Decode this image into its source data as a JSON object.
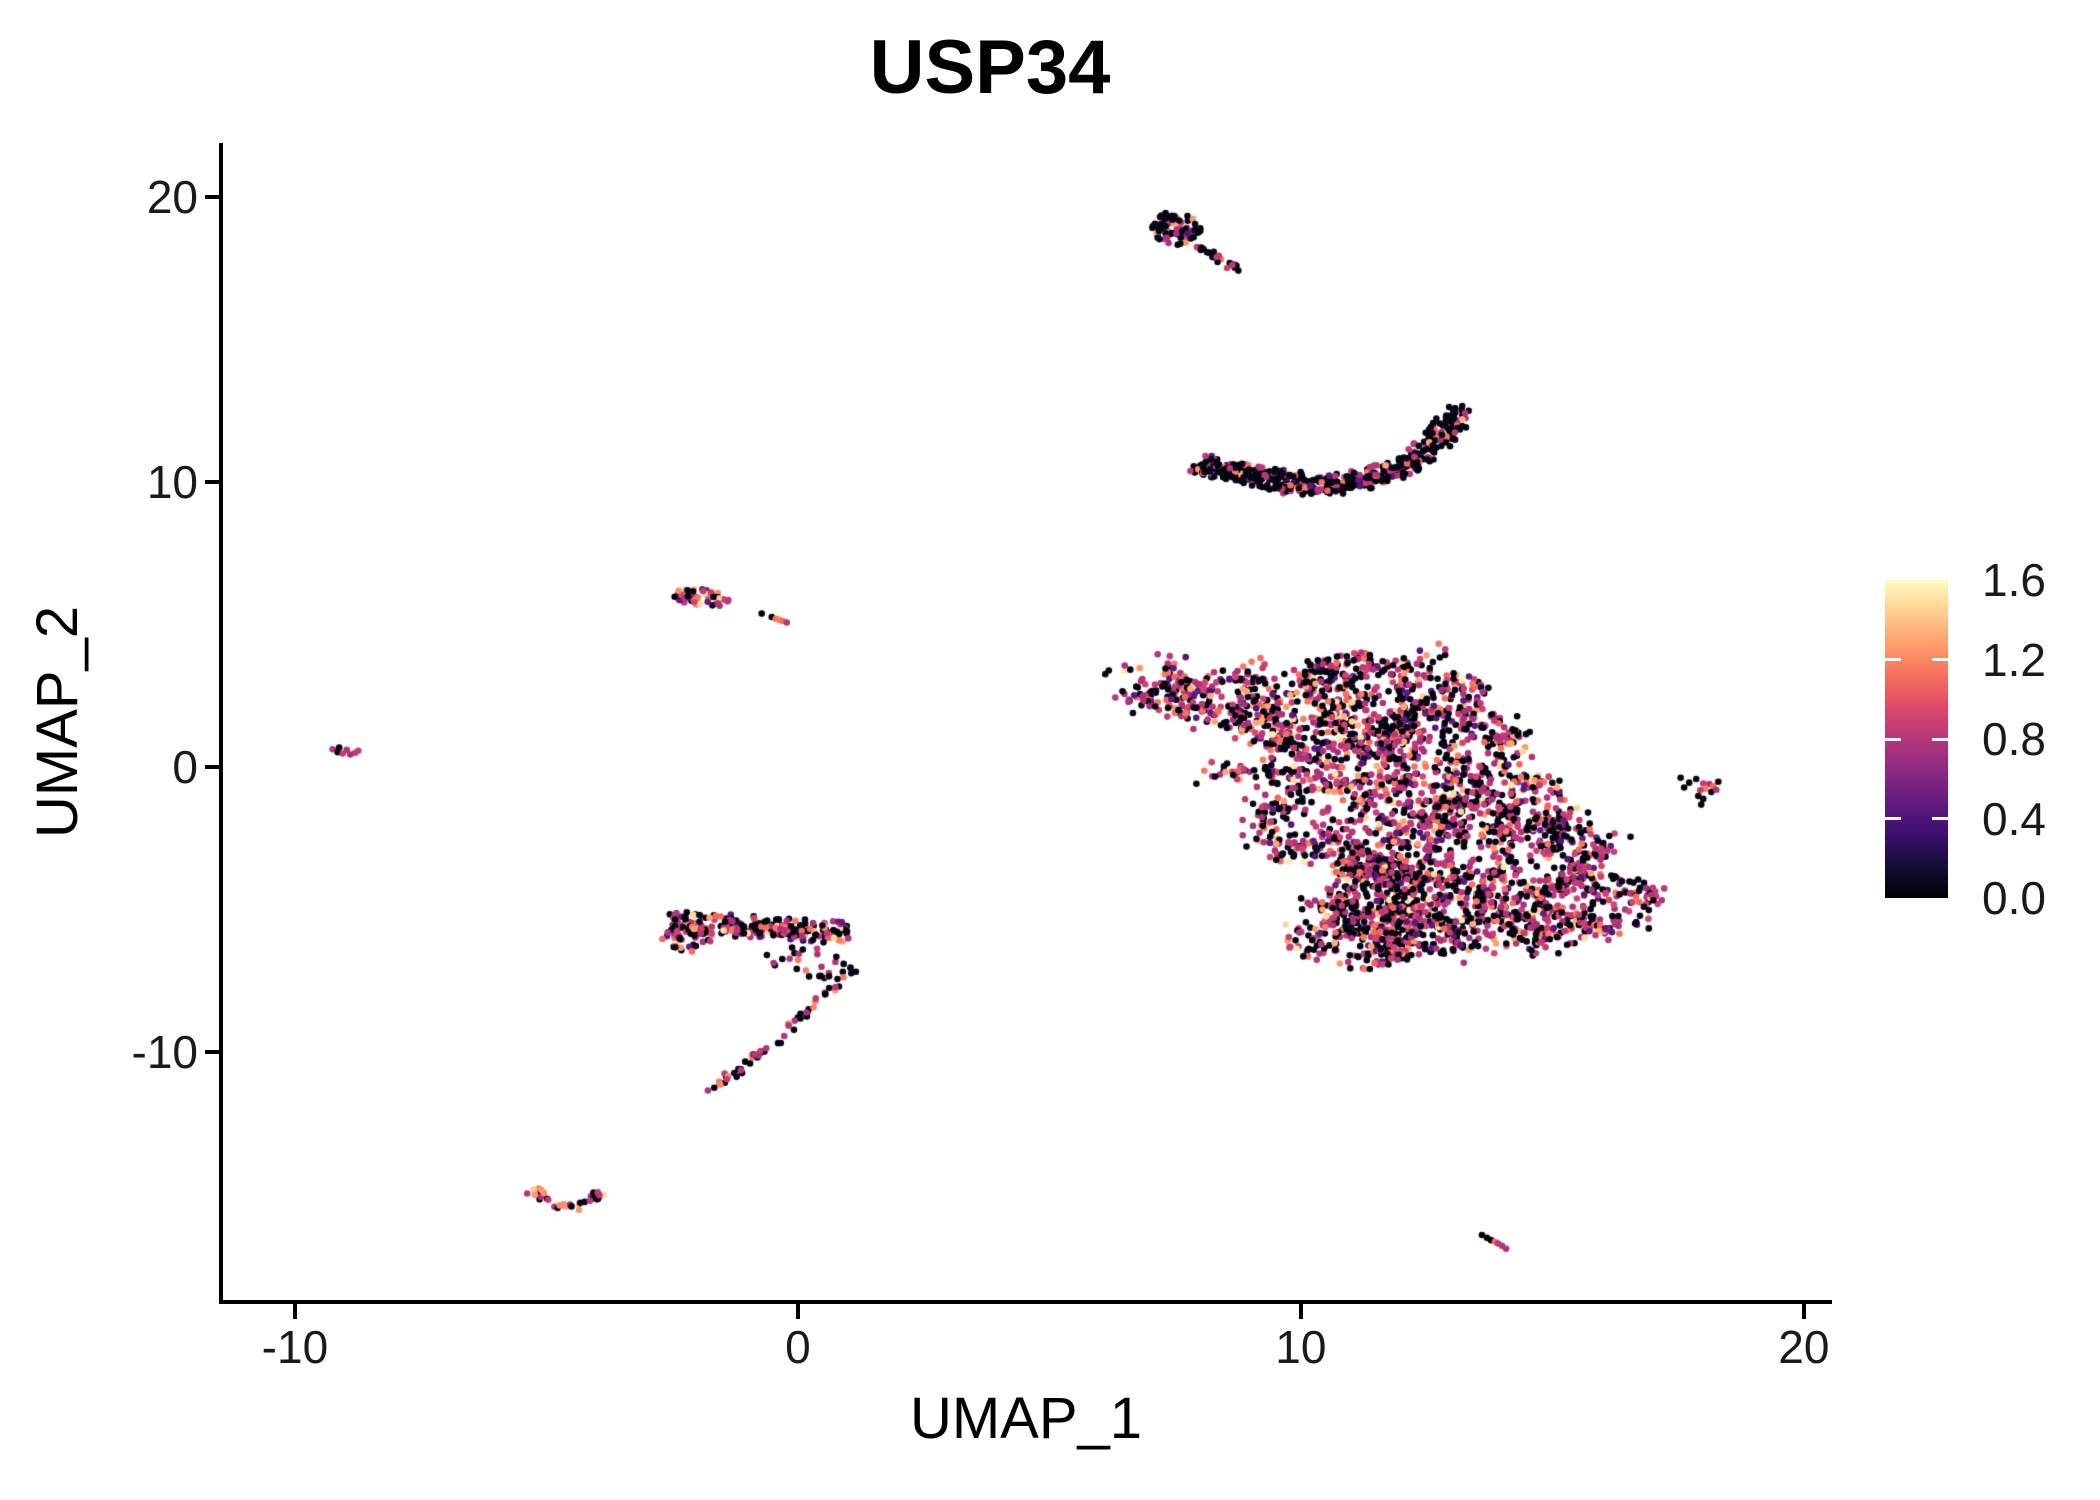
{
  "title": "USP34",
  "axes": {
    "x_label": "UMAP_1",
    "y_label": "UMAP_2",
    "x_tick_labels": [
      "-10",
      "0",
      "10",
      "20"
    ],
    "y_tick_labels": [
      "-10",
      "0",
      "10",
      "20"
    ]
  },
  "colorbar": {
    "tick_labels": [
      "0.0",
      "0.4",
      "0.8",
      "1.2",
      "1.6"
    ],
    "tick_values": [
      0.0,
      0.4,
      0.8,
      1.2,
      1.6
    ]
  },
  "chart_data": {
    "type": "scatter",
    "title": "USP34",
    "xlabel": "UMAP_1",
    "ylabel": "UMAP_2",
    "xlim": [
      -11.45,
      20.52
    ],
    "ylim": [
      -18.77,
      21.89
    ],
    "x_ticks": [
      -10,
      0,
      10,
      20
    ],
    "y_ticks": [
      -10,
      0,
      10,
      20
    ],
    "grid": false,
    "legend_position": "right",
    "point_radius_px": 3.3,
    "color_scale": {
      "name": "magma",
      "min": 0.0,
      "max": 1.6,
      "ticks": [
        0.0,
        0.4,
        0.8,
        1.2,
        1.6
      ],
      "stops": [
        [
          0,
          "#000004"
        ],
        [
          0.1,
          "#140E36"
        ],
        [
          0.2,
          "#3B0F70"
        ],
        [
          0.3,
          "#641A80"
        ],
        [
          0.4,
          "#8C2981"
        ],
        [
          0.5,
          "#B63679"
        ],
        [
          0.6,
          "#DE4968"
        ],
        [
          0.7,
          "#F76F5C"
        ],
        [
          0.8,
          "#FE9F6D"
        ],
        [
          0.9,
          "#FECE91"
        ],
        [
          1,
          "#FCFDBF"
        ]
      ]
    },
    "palettes": {
      "mixed_rich": [
        [
          0.03,
          0.4
        ],
        [
          0.45,
          0.07
        ],
        [
          0.78,
          0.2
        ],
        [
          0.88,
          0.16
        ],
        [
          1.12,
          0.09
        ],
        [
          1.3,
          0.05
        ],
        [
          1.5,
          0.03
        ]
      ],
      "black_heavy": [
        [
          0.03,
          0.7
        ],
        [
          0.8,
          0.18
        ],
        [
          0.45,
          0.04
        ],
        [
          1.12,
          0.06
        ],
        [
          1.3,
          0.02
        ]
      ],
      "purple_heavy": [
        [
          0.8,
          0.45
        ],
        [
          0.88,
          0.12
        ],
        [
          0.03,
          0.22
        ],
        [
          0.5,
          0.06
        ],
        [
          1.2,
          0.1
        ],
        [
          1.45,
          0.05
        ]
      ],
      "trail": [
        [
          0.03,
          0.55
        ],
        [
          0.85,
          0.3
        ],
        [
          1.15,
          0.15
        ]
      ],
      "scatter_dark": [
        [
          0.03,
          0.55
        ],
        [
          0.8,
          0.35
        ],
        [
          1.15,
          0.1
        ]
      ],
      "tail": [
        [
          0.03,
          0.6
        ],
        [
          0.8,
          0.28
        ],
        [
          1.2,
          0.09
        ],
        [
          0.5,
          0.03
        ]
      ],
      "v_palette": [
        [
          0.8,
          0.45
        ],
        [
          0.03,
          0.3
        ],
        [
          1.25,
          0.12
        ],
        [
          1.45,
          0.06
        ],
        [
          0.5,
          0.07
        ]
      ]
    },
    "clusters": [
      {
        "name": "comet-top",
        "seed": 11,
        "parts": [
          {
            "kind": "ellipses",
            "ellipses": [
              [
                7.55,
                18.85,
                0.52,
                0.55,
                -40
              ],
              [
                7.3,
                19.15,
                0.3,
                0.3,
                0
              ]
            ],
            "count": 75,
            "palette": "black_heavy"
          },
          {
            "kind": "band",
            "path": [
              [
                7.95,
                18.3
              ],
              [
                8.2,
                18.0
              ],
              [
                8.5,
                17.7
              ],
              [
                8.8,
                17.35
              ]
            ],
            "halfwidth": 0.1,
            "count": 22,
            "palette": "trail"
          }
        ]
      },
      {
        "name": "crescent-band",
        "seed": 22,
        "parts": [
          {
            "kind": "band",
            "path": [
              [
                8.0,
                10.65
              ],
              [
                8.5,
                10.4
              ],
              [
                9.1,
                10.2
              ],
              [
                9.8,
                10.05
              ],
              [
                10.6,
                9.95
              ],
              [
                11.3,
                10.1
              ],
              [
                11.9,
                10.45
              ],
              [
                12.4,
                10.95
              ],
              [
                12.85,
                11.7
              ],
              [
                13.15,
                12.5
              ]
            ],
            "halfwidth": 0.33,
            "count": 470,
            "palette": "black_heavy"
          },
          {
            "kind": "band",
            "path": [
              [
                9.2,
                9.8
              ],
              [
                10.1,
                9.7
              ],
              [
                11.0,
                9.75
              ]
            ],
            "halfwidth": 0.15,
            "count": 36,
            "palette": "black_heavy"
          }
        ]
      },
      {
        "name": "small-blob-left",
        "seed": 33,
        "parts": [
          {
            "kind": "ellipses",
            "ellipses": [
              [
                -1.95,
                5.95,
                0.62,
                0.3,
                -12
              ]
            ],
            "count": 48,
            "palette": "purple_heavy"
          }
        ]
      },
      {
        "name": "small-capsule",
        "seed": 44,
        "parts": [
          {
            "kind": "points",
            "points": [
              [
                -0.72,
                5.38,
                0.02
              ],
              [
                -0.52,
                5.26,
                0.02
              ],
              [
                -0.44,
                5.2,
                1.12
              ],
              [
                -0.37,
                5.16,
                1.18
              ],
              [
                -0.3,
                5.12,
                1.1
              ],
              [
                -0.22,
                5.07,
                0.8
              ]
            ]
          }
        ]
      },
      {
        "name": "tiny-far-left",
        "seed": 55,
        "parts": [
          {
            "kind": "points",
            "points": [
              [
                -9.25,
                0.62,
                0.8
              ],
              [
                -9.15,
                0.52,
                0.05
              ],
              [
                -9.05,
                0.47,
                0.85
              ],
              [
                -8.97,
                0.6,
                0.78
              ],
              [
                -8.9,
                0.44,
                0.72
              ],
              [
                -8.8,
                0.5,
                0.82
              ],
              [
                -9.12,
                0.68,
                0.03
              ],
              [
                -8.74,
                0.57,
                0.85
              ]
            ]
          }
        ]
      },
      {
        "name": "main-cluster",
        "seed": 66,
        "parts": [
          {
            "kind": "ellipses",
            "ellipses": [
              [
                7.35,
                2.7,
                1.15,
                0.8,
                -35
              ],
              [
                9.4,
                2.5,
                1.9,
                1.15,
                8
              ],
              [
                11.8,
                2.9,
                2.0,
                1.2,
                -4
              ],
              [
                10.2,
                0.5,
                2.0,
                1.5,
                0
              ],
              [
                12.8,
                0.8,
                1.6,
                1.4,
                0
              ],
              [
                11.2,
                -2.0,
                2.2,
                1.7,
                0
              ],
              [
                13.9,
                -1.5,
                1.5,
                1.5,
                0
              ],
              [
                12.4,
                -4.8,
                2.5,
                1.6,
                -5
              ],
              [
                11.3,
                -5.7,
                1.6,
                1.15,
                10
              ],
              [
                15.3,
                -5.2,
                1.9,
                1.2,
                25
              ],
              [
                15.0,
                -3.0,
                1.25,
                1.1,
                0
              ]
            ],
            "count": 3550,
            "clump": {
              "children": 5,
              "sigma": 0.2
            },
            "palette": "mixed_rich"
          }
        ]
      },
      {
        "name": "swoosh-cluster",
        "seed": 77,
        "parts": [
          {
            "kind": "band",
            "path": [
              [
                -2.55,
                -5.45
              ],
              [
                -2.0,
                -5.5
              ],
              [
                -1.4,
                -5.55
              ],
              [
                -0.8,
                -5.6
              ],
              [
                -0.2,
                -5.65
              ],
              [
                0.4,
                -5.75
              ],
              [
                1.0,
                -5.85
              ]
            ],
            "halfwidth": 0.38,
            "count": 215,
            "palette": "mixed_rich"
          },
          {
            "kind": "ellipses",
            "ellipses": [
              [
                -2.2,
                -6.05,
                0.55,
                0.45,
                15
              ]
            ],
            "count": 42,
            "palette": "mixed_rich"
          },
          {
            "kind": "ellipses",
            "ellipses": [
              [
                0.25,
                -6.9,
                0.95,
                0.55,
                -15
              ]
            ],
            "count": 26,
            "palette": "scatter_dark"
          },
          {
            "kind": "band",
            "path": [
              [
                1.05,
                -7.1
              ],
              [
                0.75,
                -7.7
              ],
              [
                0.4,
                -8.3
              ],
              [
                0.0,
                -8.9
              ],
              [
                -0.5,
                -9.7
              ],
              [
                -1.0,
                -10.4
              ],
              [
                -1.45,
                -10.95
              ],
              [
                -1.75,
                -11.35
              ]
            ],
            "halfwidth": 0.13,
            "count": 62,
            "palette": "tail"
          }
        ]
      },
      {
        "name": "v-bottom-left",
        "seed": 88,
        "parts": [
          {
            "kind": "band",
            "path": [
              [
                -5.3,
                -14.85
              ],
              [
                -5.0,
                -15.1
              ],
              [
                -4.75,
                -15.4
              ],
              [
                -4.55,
                -15.55
              ],
              [
                -4.3,
                -15.35
              ],
              [
                -4.1,
                -15.12
              ],
              [
                -3.95,
                -14.95
              ]
            ],
            "halfwidth": 0.14,
            "count": 36,
            "palette": "v_palette"
          }
        ]
      },
      {
        "name": "small-right",
        "seed": 99,
        "parts": [
          {
            "kind": "points",
            "points": [
              [
                17.55,
                -0.38,
                0.03
              ],
              [
                17.72,
                -0.55,
                0.03
              ],
              [
                17.86,
                -0.42,
                0.03
              ],
              [
                18.0,
                -0.58,
                0.85
              ],
              [
                18.12,
                -0.6,
                0.8
              ],
              [
                18.2,
                -0.68,
                1.1
              ],
              [
                18.04,
                -0.76,
                1.15
              ],
              [
                17.94,
                -0.82,
                0.85
              ],
              [
                18.16,
                -0.88,
                0.03
              ],
              [
                17.9,
                -1.02,
                0.03
              ],
              [
                18.0,
                -1.12,
                0.03
              ],
              [
                17.96,
                -1.32,
                0.03
              ],
              [
                18.3,
                -0.52,
                0.03
              ],
              [
                18.26,
                -0.8,
                0.78
              ],
              [
                17.62,
                -0.72,
                0.03
              ]
            ]
          }
        ]
      },
      {
        "name": "capsule-bottom-right",
        "seed": 111,
        "parts": [
          {
            "kind": "points",
            "points": [
              [
                13.6,
                -16.42,
                0.03
              ],
              [
                13.7,
                -16.52,
                0.03
              ],
              [
                13.78,
                -16.6,
                0.03
              ],
              [
                13.86,
                -16.66,
                1.12
              ],
              [
                13.92,
                -16.72,
                0.82
              ],
              [
                14.0,
                -16.8,
                0.8
              ],
              [
                14.08,
                -16.9,
                0.78
              ]
            ]
          }
        ]
      }
    ]
  }
}
